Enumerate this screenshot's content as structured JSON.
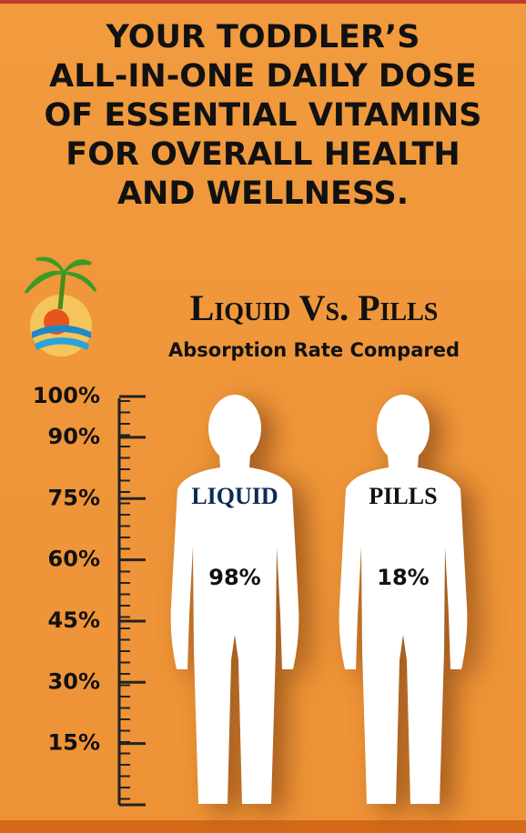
{
  "chart_data": {
    "type": "pictograph",
    "title": [
      "YOUR TODDLER’S",
      "ALL-IN-ONE DAILY DOSE",
      "OF ESSENTIAL VITAMINS",
      "FOR OVERALL HEALTH",
      "AND WELLNESS."
    ],
    "subtitle": "Liquid Vs. Pills",
    "caption": "Absorption Rate Compared",
    "categories": [
      "LIQUID",
      "PILLS"
    ],
    "values": [
      98,
      18
    ],
    "value_labels": [
      "98%",
      "18%"
    ],
    "ylim": [
      0,
      100
    ],
    "yticks": [
      {
        "value": 100,
        "label": "100%"
      },
      {
        "value": 90,
        "label": "90%"
      },
      {
        "value": 75,
        "label": "75%"
      },
      {
        "value": 60,
        "label": "60%"
      },
      {
        "value": 45,
        "label": "45%"
      },
      {
        "value": 30,
        "label": "30%"
      },
      {
        "value": 15,
        "label": "15%"
      }
    ]
  }
}
